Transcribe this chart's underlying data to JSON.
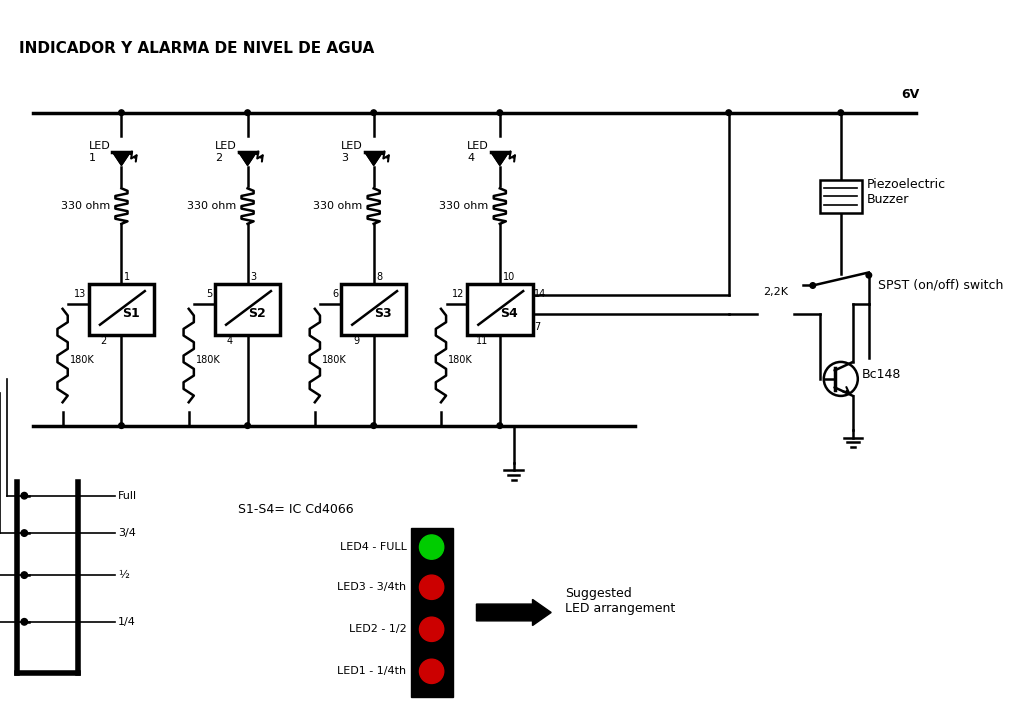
{
  "title": "INDICADOR Y ALARMA DE NIVEL DE AGUA",
  "bg_color": "#ffffff",
  "line_color": "#000000",
  "led_labels": [
    "LED\n1",
    "LED\n2",
    "LED\n3",
    "LED\n4"
  ],
  "resistor_labels": [
    "330 ohm",
    "330 ohm",
    "330 ohm",
    "330 ohm"
  ],
  "switch_labels": [
    "S1",
    "S2",
    "S3",
    "S4"
  ],
  "switch_pin_labels_top": [
    "1",
    "3",
    "8",
    "10"
  ],
  "switch_pin_labels_bottom": [
    "2",
    "4",
    "9",
    "11"
  ],
  "switch_pin_left": [
    "13",
    "5",
    "6",
    "12"
  ],
  "switch_pin_right": [
    "",
    "",
    "",
    "14"
  ],
  "switch_pin_right7": "7",
  "resistor180_labels": [
    "180K",
    "180K",
    "180K",
    "180K"
  ],
  "voltage_label": "6V",
  "buzzer_label": "Piezoelectric\nBuzzer",
  "spst_label": "SPST (on/off) switch",
  "resistor_2k2_label": "2,2K",
  "transistor_label": "Bc148",
  "ic_label": "S1-S4= IC Cd4066",
  "led_arrangement_labels": [
    "LED4 - FULL",
    "LED3 - 3/4th",
    "LED2 - 1/2",
    "LED1 - 1/4th"
  ],
  "led_arrangement_colors": [
    "#00cc00",
    "#cc0000",
    "#cc0000",
    "#cc0000"
  ],
  "suggested_label": "Suggested\nLED arrangement",
  "tank_labels": [
    "Full",
    "3/4",
    "½",
    "1/4"
  ]
}
